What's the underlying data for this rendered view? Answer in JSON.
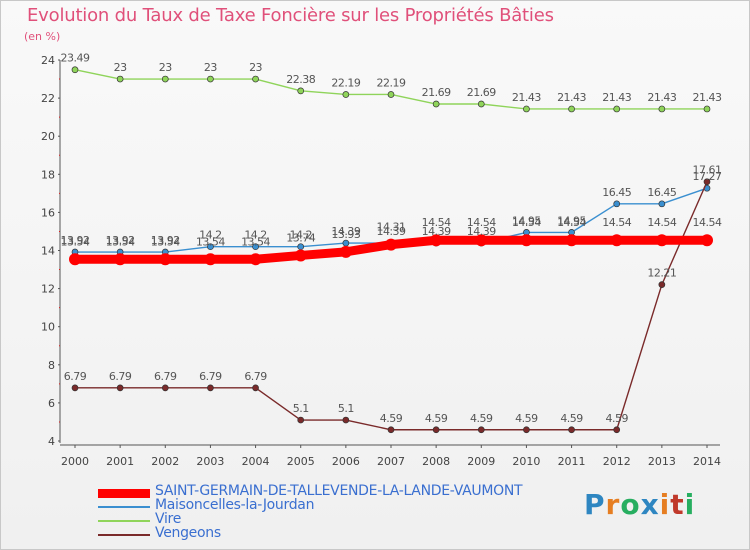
{
  "header": {
    "title": "Evolution du Taux de Taxe Foncière sur les Propriétés Bâties",
    "subtitle": "(en %)"
  },
  "logo": {
    "text": "Proxiti",
    "colors": [
      "#2e86c1",
      "#e67e22",
      "#27ae60",
      "#2e86c1",
      "#e67e22",
      "#c0392b",
      "#27ae60"
    ]
  },
  "chart_data": {
    "type": "line",
    "x": [
      2000,
      2001,
      2002,
      2003,
      2004,
      2005,
      2006,
      2007,
      2008,
      2009,
      2010,
      2011,
      2012,
      2013,
      2014
    ],
    "ylim": [
      4,
      24
    ],
    "yticks": [
      4,
      6,
      8,
      10,
      12,
      14,
      16,
      18,
      20,
      22,
      24
    ],
    "grid": false,
    "legend_position": "bottom-left",
    "series": [
      {
        "name": "SAINT-GERMAIN-DE-TALLEVENDE-LA-LANDE-VAUMONT",
        "color": "#ff0000",
        "values": [
          13.54,
          13.54,
          13.54,
          13.54,
          13.54,
          13.74,
          13.93,
          14.31,
          14.54,
          14.54,
          14.54,
          14.54,
          14.54,
          14.54,
          14.54
        ],
        "labels": [
          "13.54",
          "13.54",
          "13.54",
          "13.54",
          "13.54",
          "13.74",
          "13.93",
          "14.31",
          "14.54",
          "14.54",
          "14.54",
          "14.54",
          "14.54",
          "14.54",
          "14.54"
        ]
      },
      {
        "name": "Maisoncelles-la-Jourdan",
        "color": "#3a8fd0",
        "values": [
          13.92,
          13.92,
          13.92,
          14.2,
          14.2,
          14.2,
          14.39,
          14.39,
          14.39,
          14.39,
          14.95,
          14.95,
          16.45,
          16.45,
          17.27
        ],
        "labels": [
          "13.92",
          "13.92",
          "13.92",
          "14.2",
          "14.2",
          "14.2",
          "14.39",
          "14.39",
          "14.39",
          "14.39",
          "14.95",
          "14.95",
          "16.45",
          "16.45",
          "17.27"
        ]
      },
      {
        "name": "Vire",
        "color": "#8fd45a",
        "values": [
          23.49,
          23,
          23,
          23,
          23,
          22.38,
          22.19,
          22.19,
          21.69,
          21.69,
          21.43,
          21.43,
          21.43,
          21.43,
          21.43
        ],
        "labels": [
          "23.49",
          "23",
          "23",
          "23",
          "23",
          "22.38",
          "22.19",
          "22.19",
          "21.69",
          "21.69",
          "21.43",
          "21.43",
          "21.43",
          "21.43",
          "21.43"
        ]
      },
      {
        "name": "Vengeons",
        "color": "#7a2a2a",
        "values": [
          6.79,
          6.79,
          6.79,
          6.79,
          6.79,
          5.1,
          5.1,
          4.59,
          4.59,
          4.59,
          4.59,
          4.59,
          4.59,
          12.21,
          17.61
        ],
        "labels": [
          "6.79",
          "6.79",
          "6.79",
          "6.79",
          "6.79",
          "5.1",
          "5.1",
          "4.59",
          "4.59",
          "4.59",
          "4.59",
          "4.59",
          "4.59",
          "12.21",
          "17.61"
        ]
      }
    ]
  }
}
